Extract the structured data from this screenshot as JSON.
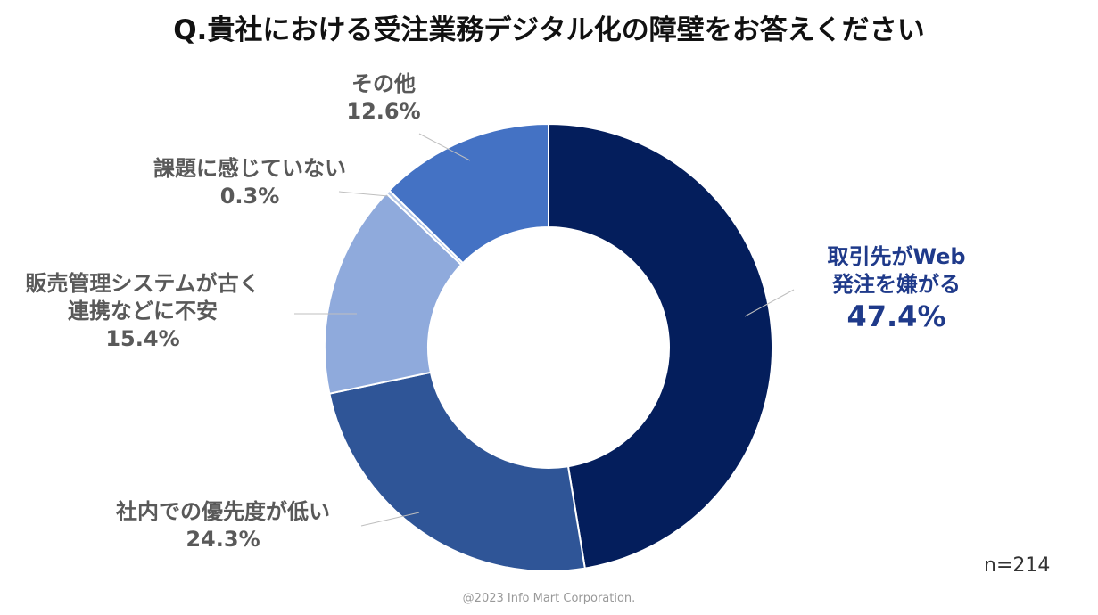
{
  "chart_data": {
    "type": "donut",
    "title": "Q.貴社における受注業務デジタル化の障壁をお答えください",
    "categories": [
      "取引先がWeb\n発注を嫌がる",
      "社内での優先度が低い",
      "販売管理システムが古く\n連携などに不安",
      "課題に感じていない",
      "その他"
    ],
    "values": [
      47.4,
      24.3,
      15.4,
      0.3,
      12.6
    ],
    "value_labels": [
      "47.4%",
      "24.3%",
      "15.4%",
      "0.3%",
      "12.6%"
    ],
    "colors": [
      "#041e5c",
      "#2f5597",
      "#8faadc",
      "#b4c7e7",
      "#4472c4"
    ],
    "sample_note": "n=214",
    "copyright": "@2023 Info Mart Corporation."
  }
}
